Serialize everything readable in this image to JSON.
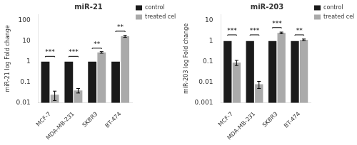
{
  "chart_data": [
    {
      "type": "bar",
      "title": "miR-21",
      "y_label": "miR-21 log Fold change",
      "categories": [
        "MCF-7",
        "MDA-MB-231",
        "SKBR3",
        "BT-474"
      ],
      "series": [
        {
          "name": "control",
          "color": "#1a1a1a",
          "values": [
            1.0,
            1.0,
            1.0,
            1.0
          ]
        },
        {
          "name": "treated cell line",
          "color": "#aaaaaa",
          "values": [
            0.025,
            0.04,
            2.8,
            17.0
          ],
          "errors": [
            0.012,
            0.01,
            0.25,
            2.0
          ]
        }
      ],
      "ylim": [
        0.01,
        200
      ],
      "yticks": [
        0.01,
        0.1,
        1,
        10,
        100
      ],
      "log": "y",
      "grid": false,
      "legend": "right",
      "annotations": [
        {
          "text": "***",
          "x": "MCF-7",
          "y": 1.8
        },
        {
          "text": "***",
          "x": "MDA-MB-231",
          "y": 1.8
        },
        {
          "text": "**",
          "x": "SKBR3",
          "y": 4.5
        },
        {
          "text": "**",
          "x": "BT-474",
          "y": 30.0
        }
      ]
    },
    {
      "type": "bar",
      "title": "miR-203",
      "y_label": "miR-203 log Fold change",
      "categories": [
        "MCF-7",
        "MDA-MB-231",
        "SKBR3",
        "BT-474"
      ],
      "series": [
        {
          "name": "control",
          "color": "#1a1a1a",
          "values": [
            1.0,
            1.0,
            1.0,
            1.0
          ]
        },
        {
          "name": "treated cell line",
          "color": "#aaaaaa",
          "values": [
            0.09,
            0.008,
            2.5,
            1.15
          ],
          "errors": [
            0.025,
            0.003,
            0.22,
            0.1
          ]
        }
      ],
      "ylim": [
        0.001,
        20
      ],
      "yticks": [
        0.001,
        0.01,
        0.1,
        1,
        10
      ],
      "log": "y",
      "grid": false,
      "legend": "right",
      "annotations": [
        {
          "text": "***",
          "x": "MCF-7",
          "y": 2.0
        },
        {
          "text": "***",
          "x": "MDA-MB-231",
          "y": 2.0
        },
        {
          "text": "***",
          "x": "SKBR3",
          "y": 4.5
        },
        {
          "text": "**",
          "x": "BT-474",
          "y": 2.0
        }
      ]
    }
  ]
}
